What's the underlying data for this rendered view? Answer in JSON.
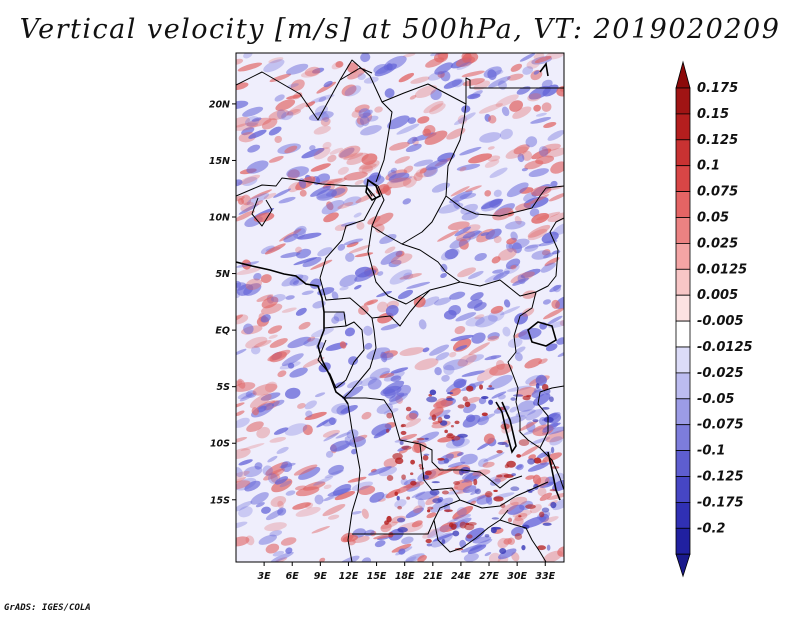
{
  "title": "Vertical velocity [m/s] at 500hPa, VT: 2019020209",
  "credit": "GrADS: IGES/COLA",
  "map": {
    "variable": "Vertical velocity",
    "units": "m/s",
    "level": "500hPa",
    "valid_time": "2019020209",
    "region": "Central Africa",
    "lon_range": [
      0,
      35
    ],
    "lat_range": [
      -20.5,
      24.5
    ],
    "lat_ticks": [
      {
        "value": 20,
        "label": "20N"
      },
      {
        "value": 15,
        "label": "15N"
      },
      {
        "value": 10,
        "label": "10N"
      },
      {
        "value": 5,
        "label": "5N"
      },
      {
        "value": 0,
        "label": "EQ"
      },
      {
        "value": -5,
        "label": "5S"
      },
      {
        "value": -10,
        "label": "10S"
      },
      {
        "value": -15,
        "label": "15S"
      }
    ],
    "lon_ticks": [
      {
        "value": 3,
        "label": "3E"
      },
      {
        "value": 6,
        "label": "6E"
      },
      {
        "value": 9,
        "label": "9E"
      },
      {
        "value": 12,
        "label": "12E"
      },
      {
        "value": 15,
        "label": "15E"
      },
      {
        "value": 18,
        "label": "18E"
      },
      {
        "value": 21,
        "label": "21E"
      },
      {
        "value": 24,
        "label": "24E"
      },
      {
        "value": 27,
        "label": "27E"
      },
      {
        "value": 30,
        "label": "30E"
      },
      {
        "value": 33,
        "label": "33E"
      }
    ]
  },
  "colorbar": {
    "levels": [
      {
        "label": "0.175",
        "color": "#a01414"
      },
      {
        "label": "0.15",
        "color": "#b41e1e"
      },
      {
        "label": "0.125",
        "color": "#c83232"
      },
      {
        "label": "0.1",
        "color": "#d84646"
      },
      {
        "label": "0.075",
        "color": "#e46464"
      },
      {
        "label": "0.05",
        "color": "#ec8282"
      },
      {
        "label": "0.025",
        "color": "#f4a5a5"
      },
      {
        "label": "0.0125",
        "color": "#f8c6c6"
      },
      {
        "label": "0.005",
        "color": "#fce2e2"
      },
      {
        "label": "-0.005",
        "color": "#ffffff"
      },
      {
        "label": "-0.0125",
        "color": "#dcdcf8"
      },
      {
        "label": "-0.025",
        "color": "#bcbcf0"
      },
      {
        "label": "-0.05",
        "color": "#9c9ce6"
      },
      {
        "label": "-0.075",
        "color": "#7d7ddc"
      },
      {
        "label": "-0.1",
        "color": "#5e5ed0"
      },
      {
        "label": "-0.125",
        "color": "#4646c4"
      },
      {
        "label": "-0.175",
        "color": "#3030b4"
      },
      {
        "label": "-0.2",
        "color": "#2020a0"
      }
    ],
    "over_color": "#8c0a0a",
    "under_color": "#1a1a8c"
  },
  "colors": {
    "positive": "#e06464",
    "negative": "#6464d8",
    "neutral": "#ffffff",
    "border": "#000000"
  }
}
